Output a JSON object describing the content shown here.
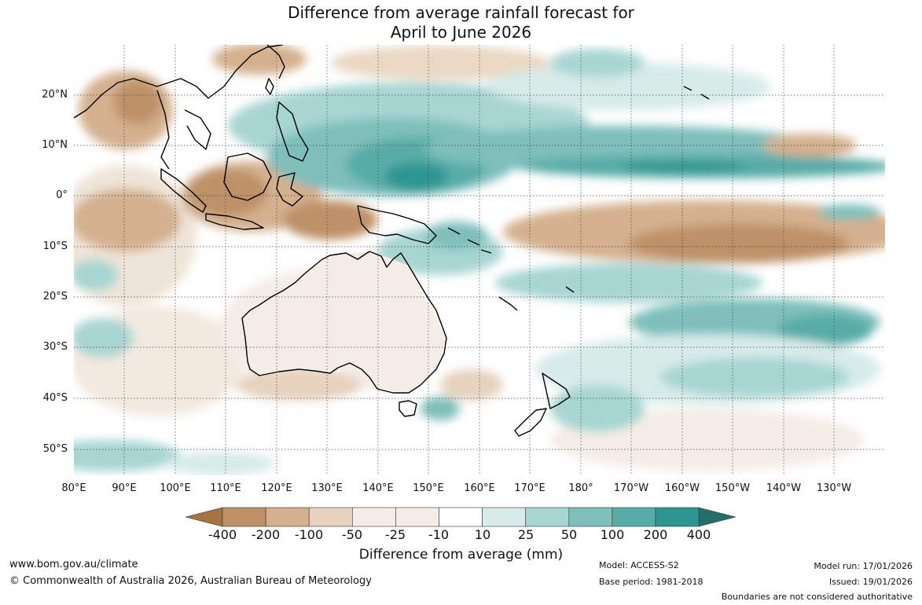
{
  "title": {
    "line1": "Difference from average rainfall forecast for",
    "line2": "April to June 2026"
  },
  "map": {
    "lat_labels": [
      "20°N",
      "10°N",
      "0°",
      "10°S",
      "20°S",
      "30°S",
      "40°S",
      "50°S"
    ],
    "lon_labels": [
      "80°E",
      "90°E",
      "100°E",
      "110°E",
      "120°E",
      "130°E",
      "140°E",
      "150°E",
      "160°E",
      "170°E",
      "180°",
      "170°W",
      "160°W",
      "150°W",
      "140°W",
      "130°W"
    ]
  },
  "colorbar": {
    "ticks": [
      "-400",
      "-200",
      "-100",
      "-50",
      "-25",
      "-10",
      "10",
      "25",
      "50",
      "100",
      "200",
      "400"
    ],
    "colors": [
      "#a67440",
      "#be9168",
      "#d4b08e",
      "#e6d2be",
      "#f4ede6",
      "#ffffff",
      "#d7ebe9",
      "#a7d5d2",
      "#7ebfbb",
      "#58aca8",
      "#2e9591",
      "#276e6b"
    ],
    "label": "Difference from average (mm)"
  },
  "footer": {
    "website": "www.bom.gov.au/climate",
    "copyright": "© Commonwealth of Australia 2026, Australian Bureau of Meteorology",
    "model": "Model: ACCESS-S2",
    "base_period": "Base period: 1981-2018",
    "model_run": "Model run: 17/01/2026",
    "issued": "Issued: 19/01/2026",
    "disclaimer": "Boundaries are not considered authoritative"
  }
}
